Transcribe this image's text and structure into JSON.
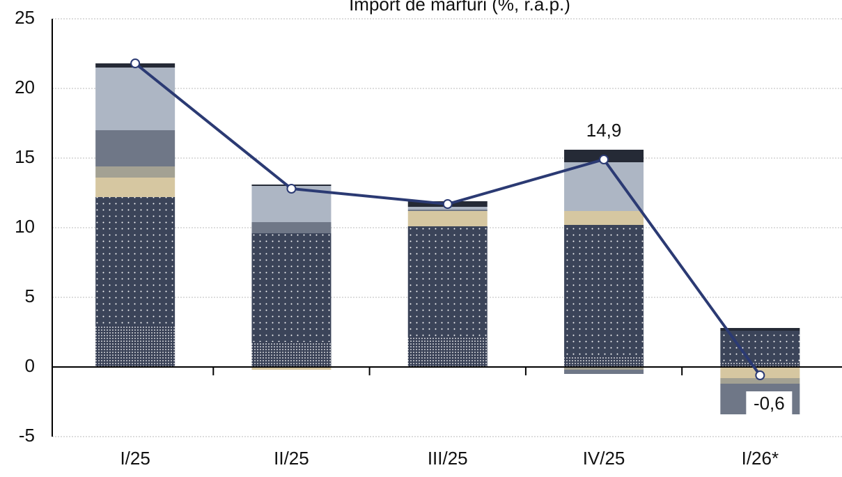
{
  "chart_data": {
    "type": "stacked-bar-line",
    "title": "Import de mărfuri (%, r.a.p.)",
    "categories": [
      "I/25",
      "II/25",
      "III/25",
      "IV/25",
      "I/26*"
    ],
    "ylim": [
      -5,
      25
    ],
    "yticks": [
      -5,
      0,
      5,
      10,
      15,
      20,
      25
    ],
    "grid": true,
    "series": [
      {
        "color": "#3a4257",
        "pattern": "dense-dots",
        "values": [
          3,
          1.8,
          2.2,
          0.8,
          0.3
        ]
      },
      {
        "color": "#3b4459",
        "pattern": "dots",
        "values": [
          9.2,
          7.8,
          7.9,
          9.4,
          2.3
        ]
      },
      {
        "color": "#d6c7a1",
        "values": [
          1.4,
          -0.2,
          1.1,
          1.0,
          -0.8
        ]
      },
      {
        "color": "#a3a193",
        "values": [
          0.8,
          0,
          0,
          -0.2,
          -0.4
        ]
      },
      {
        "color": "#6f7787",
        "values": [
          2.6,
          0.8,
          0.1,
          -0.3,
          -2.2
        ]
      },
      {
        "color": "#adb6c4",
        "values": [
          4.5,
          2.6,
          0.2,
          3.5,
          0
        ]
      },
      {
        "color": "#252a36",
        "values": [
          0.3,
          0.1,
          0.4,
          0.9,
          0.2
        ]
      }
    ],
    "line": {
      "color": "#2b3a73",
      "values": [
        21.8,
        12.8,
        11.7,
        14.9,
        -0.6
      ],
      "value_labels": [
        null,
        null,
        null,
        "14,9",
        "-0,6"
      ]
    }
  }
}
